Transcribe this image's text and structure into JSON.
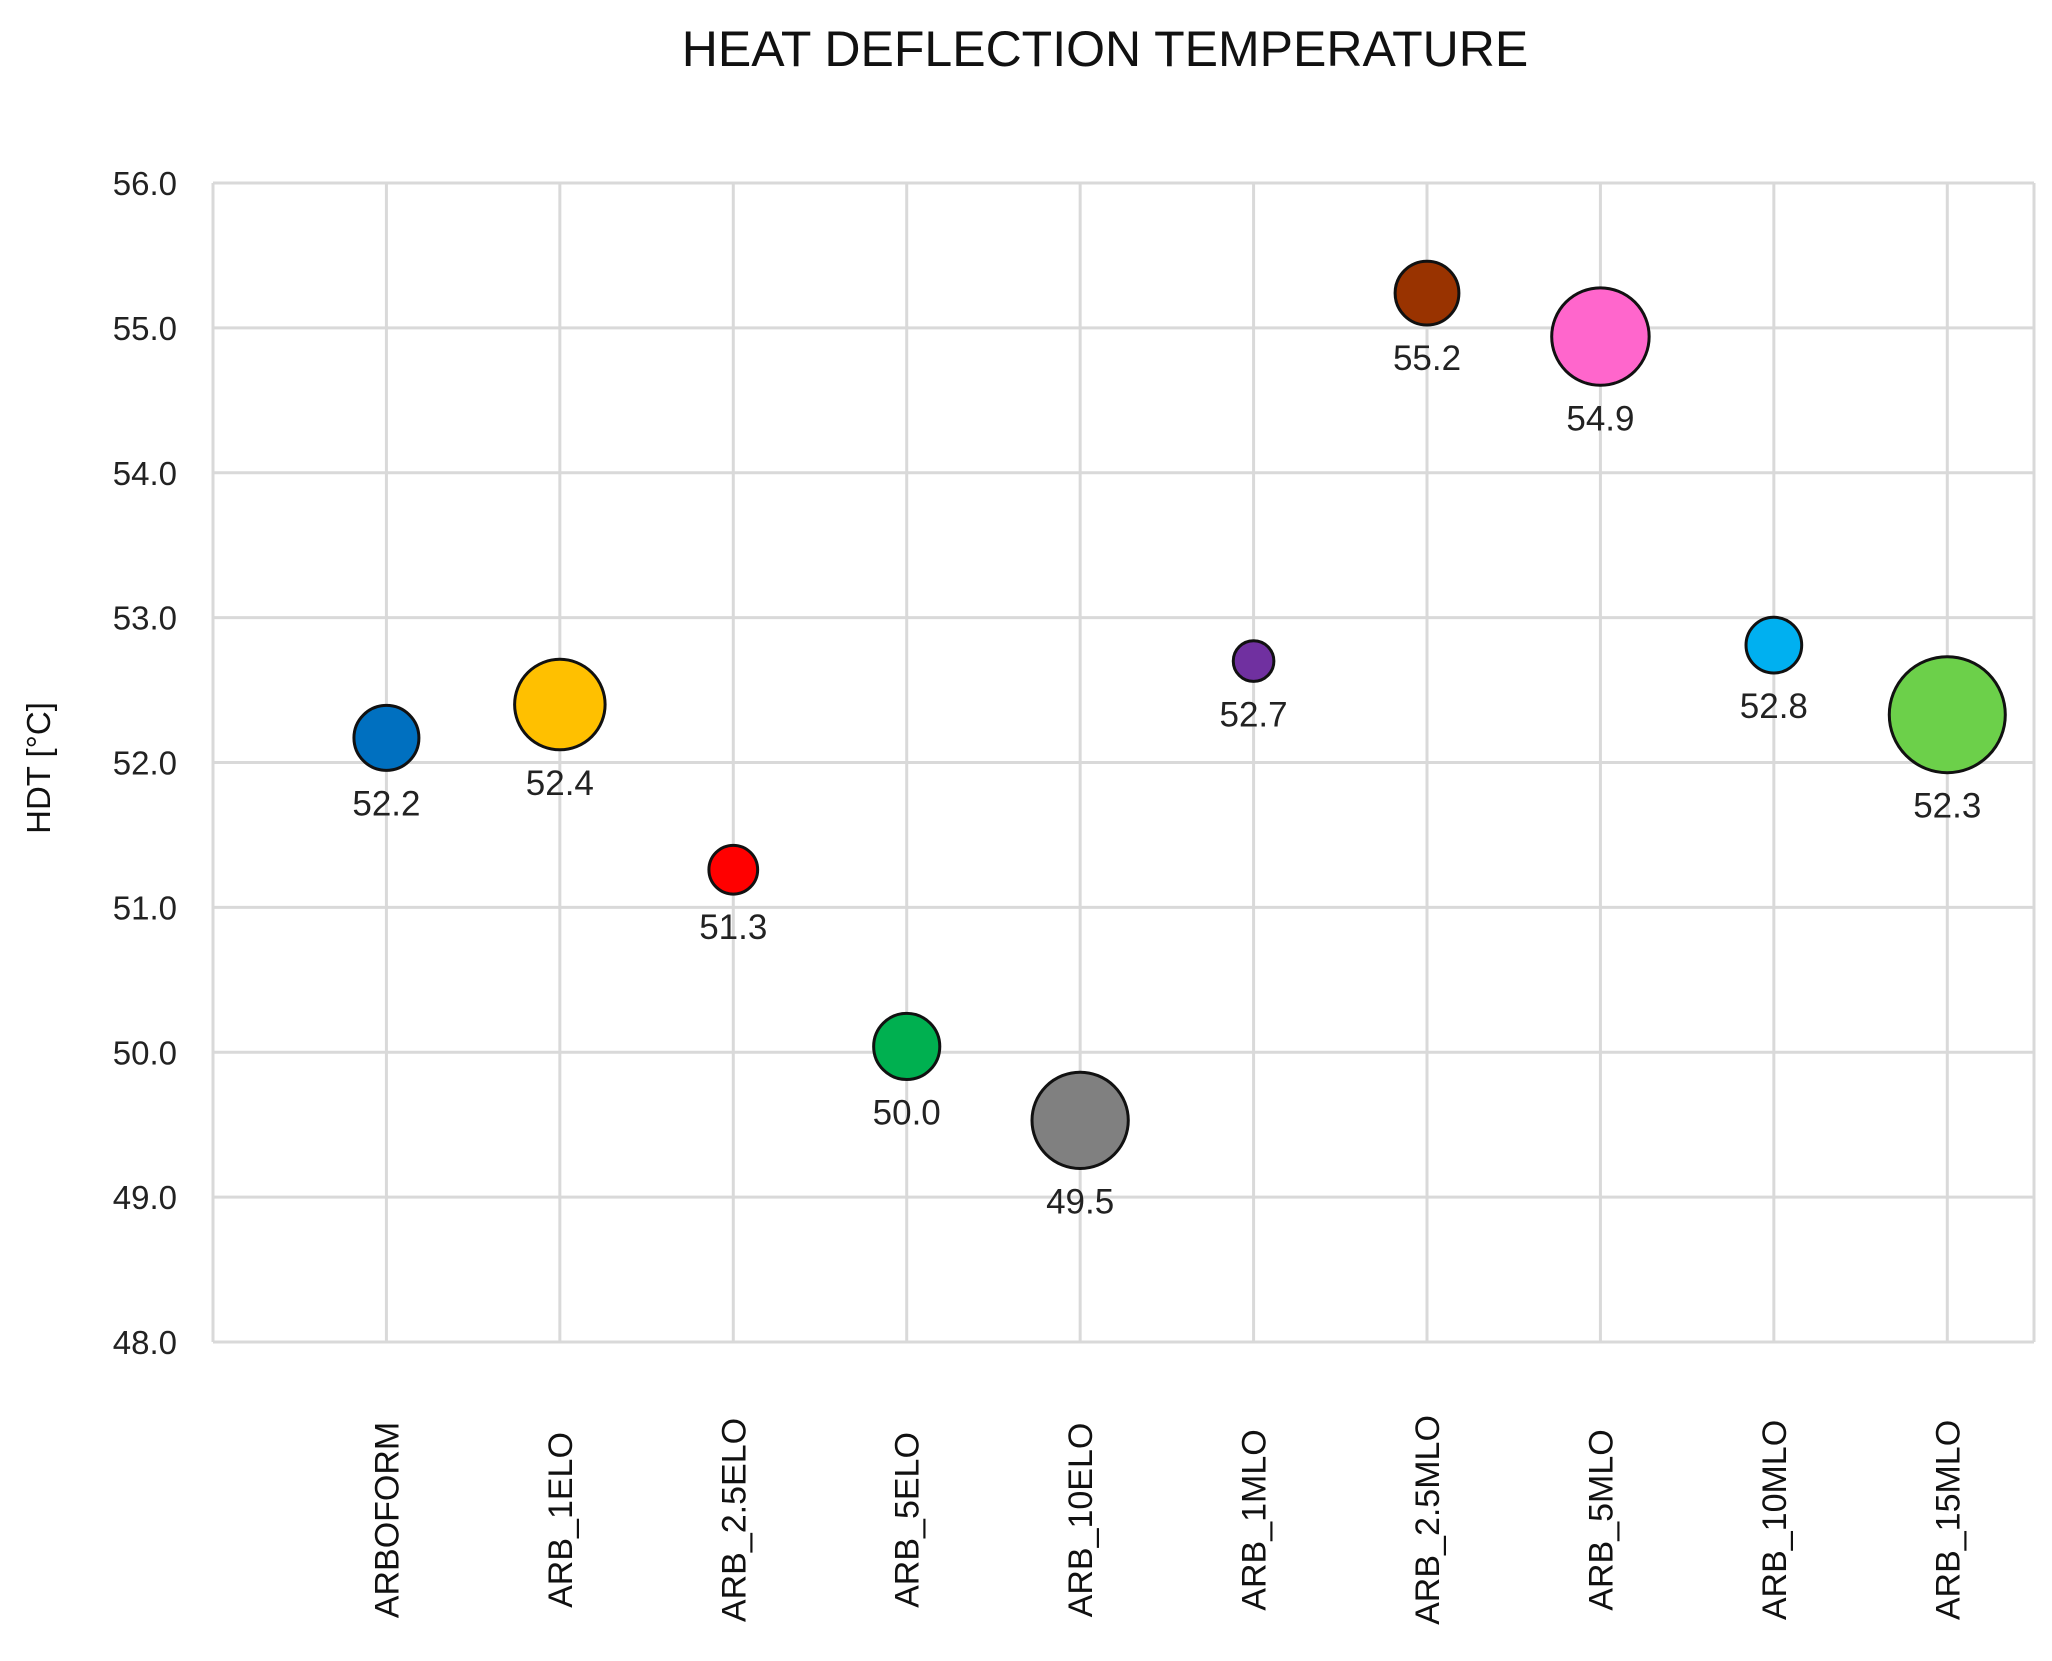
{
  "chart_data": {
    "type": "bubble",
    "title": "HEAT DEFLECTION TEMPERATURE",
    "xlabel": "",
    "ylabel": "HDT [°C]",
    "ylim": [
      48.0,
      56.0
    ],
    "y_ticks": [
      "48.0",
      "49.0",
      "50.0",
      "51.0",
      "52.0",
      "53.0",
      "54.0",
      "55.0",
      "56.0"
    ],
    "grid": true,
    "categories": [
      "ARBOFORM",
      "ARB_1ELO",
      "ARB_2.5ELO",
      "ARB_5ELO",
      "ARB_10ELO",
      "ARB_1MLO",
      "ARB_2.5MLO",
      "ARB_5MLO",
      "ARB_10MLO",
      "ARB_15MLO"
    ],
    "points": [
      {
        "category": "ARBOFORM",
        "value": 52.17,
        "label": "52.2",
        "relative_size": 0.56,
        "color": "#0070c0"
      },
      {
        "category": "ARB_1ELO",
        "value": 52.4,
        "label": "52.4",
        "relative_size": 0.78,
        "color": "#ffc000"
      },
      {
        "category": "ARB_2.5ELO",
        "value": 51.26,
        "label": "51.3",
        "relative_size": 0.42,
        "color": "#ff0000"
      },
      {
        "category": "ARB_5ELO",
        "value": 50.04,
        "label": "50.0",
        "relative_size": 0.57,
        "color": "#00b050"
      },
      {
        "category": "ARB_10ELO",
        "value": 49.53,
        "label": "49.5",
        "relative_size": 0.83,
        "color": "#808080"
      },
      {
        "category": "ARB_1MLO",
        "value": 52.7,
        "label": "52.7",
        "relative_size": 0.35,
        "color": "#7030a0"
      },
      {
        "category": "ARB_2.5MLO",
        "value": 55.24,
        "label": "55.2",
        "relative_size": 0.55,
        "color": "#993300"
      },
      {
        "category": "ARB_5MLO",
        "value": 54.94,
        "label": "54.9",
        "relative_size": 0.84,
        "color": "#ff66cc"
      },
      {
        "category": "ARB_10MLO",
        "value": 52.81,
        "label": "52.8",
        "relative_size": 0.48,
        "color": "#00b0f0"
      },
      {
        "category": "ARB_15MLO",
        "value": 52.33,
        "label": "52.3",
        "relative_size": 1.0,
        "color": "#6cd04a"
      }
    ]
  }
}
